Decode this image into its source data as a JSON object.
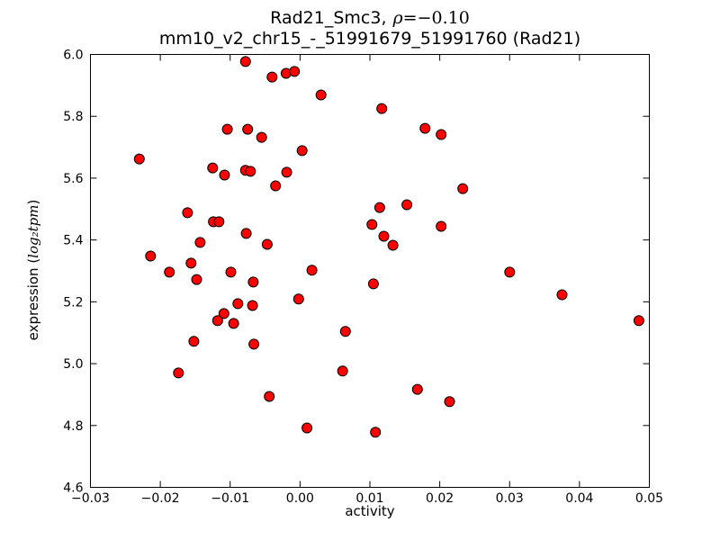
{
  "figure": {
    "title_line1_text": "Rad21_Smc3,",
    "title_rho_symbol": "ρ",
    "title_rho_rest": "=−0.10",
    "title_line2": "mm10_v2_chr15_-_51991679_51991760 (Rad21)",
    "xlabel": "activity",
    "ylabel_prefix": "expression (",
    "ylabel_math": "log₂tpm",
    "ylabel_suffix": ")"
  },
  "chart_data": {
    "type": "scatter",
    "title": "Rad21_Smc3, ρ=−0.10",
    "subtitle": "mm10_v2_chr15_-_51991679_51991760 (Rad21)",
    "correlation_rho": -0.1,
    "xlabel": "activity",
    "ylabel": "expression (log2 tpm)",
    "xlim": [
      -0.03,
      0.05
    ],
    "ylim": [
      4.6,
      6.0
    ],
    "xticks": [
      -0.03,
      -0.02,
      -0.01,
      0.0,
      0.01,
      0.02,
      0.03,
      0.04,
      0.05
    ],
    "xtick_labels": [
      "−0.03",
      "−0.02",
      "−0.01",
      "0.00",
      "0.01",
      "0.02",
      "0.03",
      "0.04",
      "0.05"
    ],
    "yticks": [
      4.6,
      4.8,
      5.0,
      5.2,
      5.4,
      5.6,
      5.8,
      6.0
    ],
    "ytick_labels": [
      "4.6",
      "4.8",
      "5.0",
      "5.2",
      "5.4",
      "5.6",
      "5.8",
      "6.0"
    ],
    "grid": false,
    "legend": null,
    "background_color": "#ffffff",
    "marker": {
      "shape": "circle",
      "fill": "#ff0000",
      "edge_color": "#000000",
      "radius_px": 5.5
    },
    "points": [
      [
        -0.0078,
        5.977
      ],
      [
        -0.004,
        5.927
      ],
      [
        -0.0104,
        5.758
      ],
      [
        -0.0075,
        5.758
      ],
      [
        -0.0055,
        5.732
      ],
      [
        -0.023,
        5.662
      ],
      [
        -0.0125,
        5.633
      ],
      [
        -0.0108,
        5.61
      ],
      [
        -0.0078,
        5.625
      ],
      [
        -0.0071,
        5.622
      ],
      [
        -0.0035,
        5.575
      ],
      [
        -0.0161,
        5.488
      ],
      [
        -0.0124,
        5.459
      ],
      [
        -0.0116,
        5.459
      ],
      [
        -0.0077,
        5.421
      ],
      [
        -0.0047,
        5.386
      ],
      [
        -0.0143,
        5.392
      ],
      [
        -0.0214,
        5.348
      ],
      [
        -0.0156,
        5.325
      ],
      [
        -0.002,
        5.939
      ],
      [
        -0.0008,
        5.945
      ],
      [
        0.003,
        5.869
      ],
      [
        0.0117,
        5.825
      ],
      [
        0.0179,
        5.761
      ],
      [
        0.0202,
        5.741
      ],
      [
        0.0003,
        5.689
      ],
      [
        -0.0019,
        5.619
      ],
      [
        0.0233,
        5.566
      ],
      [
        0.0114,
        5.505
      ],
      [
        0.0153,
        5.514
      ],
      [
        0.0103,
        5.45
      ],
      [
        0.012,
        5.412
      ],
      [
        0.0133,
        5.383
      ],
      [
        0.0202,
        5.444
      ],
      [
        -0.0187,
        5.296
      ],
      [
        -0.0148,
        5.272
      ],
      [
        -0.0099,
        5.296
      ],
      [
        -0.0067,
        5.264
      ],
      [
        -0.0089,
        5.194
      ],
      [
        -0.0068,
        5.188
      ],
      [
        -0.0109,
        5.162
      ],
      [
        -0.0118,
        5.139
      ],
      [
        -0.0095,
        5.13
      ],
      [
        -0.0152,
        5.072
      ],
      [
        -0.0066,
        5.063
      ],
      [
        -0.0174,
        4.97
      ],
      [
        -0.0044,
        4.894
      ],
      [
        0.0017,
        5.302
      ],
      [
        0.0105,
        5.258
      ],
      [
        -0.0002,
        5.209
      ],
      [
        0.0065,
        5.104
      ],
      [
        0.0061,
        4.976
      ],
      [
        0.0168,
        4.917
      ],
      [
        0.0214,
        4.877
      ],
      [
        0.001,
        4.792
      ],
      [
        0.0108,
        4.778
      ],
      [
        0.03,
        5.296
      ],
      [
        0.0375,
        5.223
      ],
      [
        0.0485,
        5.139
      ]
    ]
  }
}
